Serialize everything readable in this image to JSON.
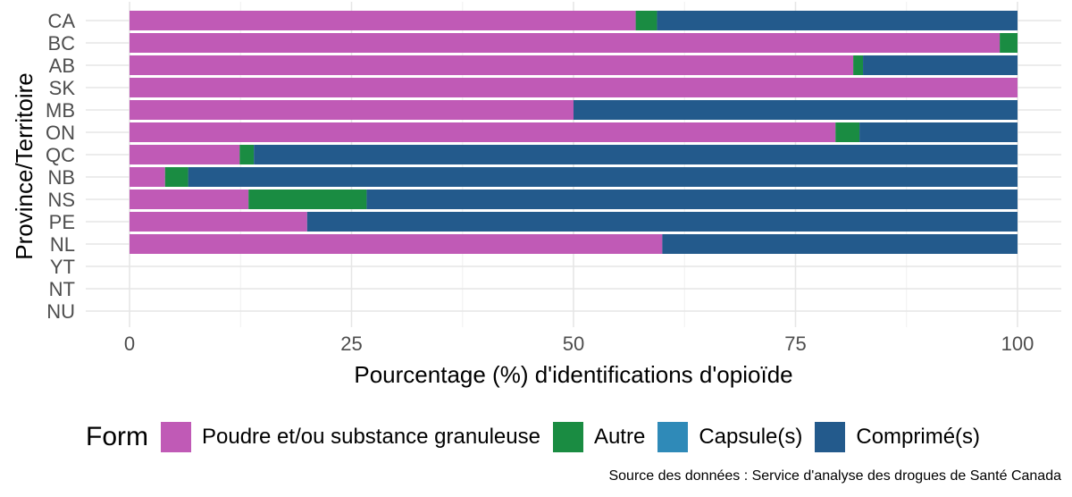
{
  "chart_data": {
    "type": "bar",
    "orientation": "horizontal",
    "stacked": true,
    "title": "",
    "xlabel": "Pourcentage (%) d'identifications d'opioïde",
    "ylabel": "Province/Territoire",
    "xlim": [
      0,
      100
    ],
    "xticks": [
      0,
      25,
      50,
      75,
      100
    ],
    "xtick_labels": [
      "0",
      "25",
      "50",
      "75",
      "100"
    ],
    "grid": true,
    "categories": [
      "CA",
      "BC",
      "AB",
      "SK",
      "MB",
      "ON",
      "QC",
      "NB",
      "NS",
      "PE",
      "NL",
      "YT",
      "NT",
      "NU"
    ],
    "series": [
      {
        "name": "Poudre et/ou substance granuleuse",
        "color": "#c05ab6",
        "values": [
          57,
          98,
          81.5,
          100,
          50,
          79.5,
          12.4,
          4,
          13.4,
          20,
          60,
          0,
          0,
          0
        ]
      },
      {
        "name": "Autre",
        "color": "#1a8c42",
        "values": [
          2.4,
          2,
          1.1,
          0,
          0,
          2.7,
          1.6,
          2.6,
          13.3,
          0,
          0,
          0,
          0,
          0
        ]
      },
      {
        "name": "Capsule(s)",
        "color": "#2f8ab8",
        "values": [
          0,
          0,
          0,
          0,
          0,
          0,
          0,
          0,
          0,
          0,
          0,
          0,
          0,
          0
        ]
      },
      {
        "name": "Comprimé(s)",
        "color": "#235a8c",
        "values": [
          40.6,
          0,
          17.4,
          0,
          50,
          17.8,
          86,
          93.4,
          73.3,
          80,
          40,
          0,
          0,
          0
        ]
      }
    ]
  },
  "legend": {
    "title": "Form",
    "items": [
      {
        "label": "Poudre et/ou substance granuleuse",
        "color": "#c05ab6"
      },
      {
        "label": "Autre",
        "color": "#1a8c42"
      },
      {
        "label": "Capsule(s)",
        "color": "#2f8ab8"
      },
      {
        "label": "Comprimé(s)",
        "color": "#235a8c"
      }
    ]
  },
  "source": "Source des données : Service d'analyse des drogues de Santé Canada"
}
